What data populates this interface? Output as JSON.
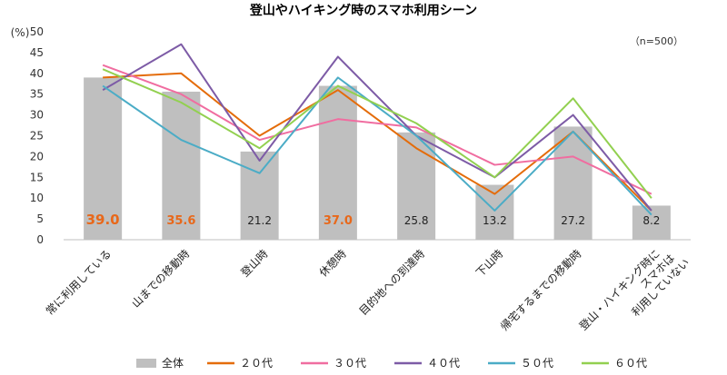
{
  "chart_data": {
    "type": "bar",
    "title": "登山やハイキング時のスマホ利用シーン",
    "ylabel": "(%)",
    "note": "（n=500）",
    "ylim": [
      0,
      50
    ],
    "yticks": [
      0,
      5,
      10,
      15,
      20,
      25,
      30,
      35,
      40,
      45,
      50
    ],
    "grid": false,
    "legend_position": "bottom",
    "categories": [
      "常に利用している",
      "山までの移動時",
      "登山時",
      "休憩時",
      "目的地への到達時",
      "下山時",
      "帰宅するまでの移動時",
      "登山・ハイキング時に\nスマホは\n利用していない"
    ],
    "bar_series": {
      "name": "全体",
      "color": "#bfbfbf",
      "values": [
        39.0,
        35.6,
        21.2,
        37.0,
        25.8,
        13.2,
        27.2,
        8.2
      ],
      "labels": [
        "39.0",
        "35.6",
        "21.2",
        "37.0",
        "25.8",
        "13.2",
        "27.2",
        "8.2"
      ],
      "highlight": [
        true,
        true,
        false,
        true,
        false,
        false,
        false,
        false
      ],
      "highlight_color": "#e8681a"
    },
    "line_series": [
      {
        "name": "２０代",
        "color": "#e46c0a",
        "values": [
          39,
          40,
          25,
          36,
          22,
          11,
          26,
          7
        ]
      },
      {
        "name": "３０代",
        "color": "#f06da0",
        "values": [
          42,
          35,
          24,
          29,
          27,
          18,
          20,
          11
        ]
      },
      {
        "name": "４０代",
        "color": "#7d5ba6",
        "values": [
          36,
          47,
          19,
          44,
          25,
          15,
          30,
          7
        ]
      },
      {
        "name": "５０代",
        "color": "#4bacc6",
        "values": [
          37,
          24,
          16,
          39,
          25,
          7,
          26,
          6
        ]
      },
      {
        "name": "６０代",
        "color": "#92d050",
        "values": [
          41,
          33,
          22,
          37,
          28,
          15,
          34,
          10
        ]
      }
    ]
  }
}
